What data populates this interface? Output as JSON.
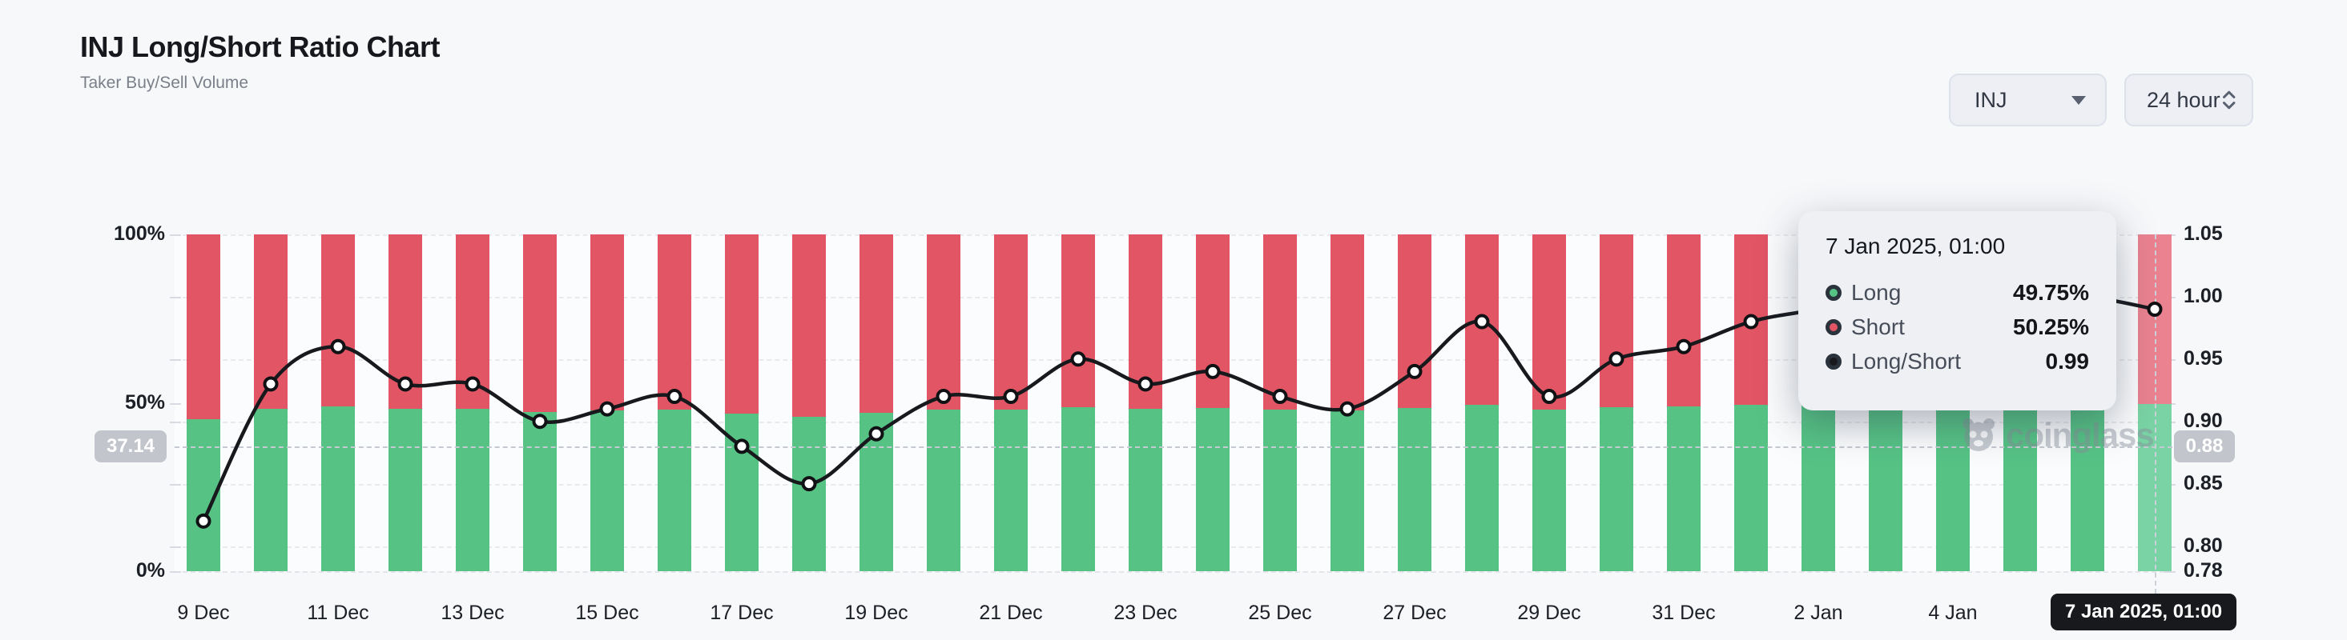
{
  "header": {
    "title": "INJ Long/Short Ratio Chart",
    "subtitle": "Taker Buy/Sell Volume"
  },
  "controls": {
    "symbol": {
      "value": "INJ"
    },
    "interval": {
      "value": "24 hour"
    }
  },
  "watermark": "coinglass",
  "chart_data": {
    "type": "bar",
    "subtype": "100%-stacked bars with long/short ratio line overlay",
    "categories": [
      "9 Dec",
      "10 Dec",
      "11 Dec",
      "12 Dec",
      "13 Dec",
      "14 Dec",
      "15 Dec",
      "16 Dec",
      "17 Dec",
      "18 Dec",
      "19 Dec",
      "20 Dec",
      "21 Dec",
      "22 Dec",
      "23 Dec",
      "24 Dec",
      "25 Dec",
      "26 Dec",
      "27 Dec",
      "28 Dec",
      "29 Dec",
      "30 Dec",
      "31 Dec",
      "1 Jan",
      "2 Jan",
      "3 Jan",
      "4 Jan",
      "5 Jan",
      "6 Jan",
      "7 Jan"
    ],
    "series": [
      {
        "name": "Long",
        "axis": "left",
        "unit": "%",
        "color": "#56c385",
        "values": [
          45.05,
          48.19,
          48.98,
          48.19,
          48.19,
          47.37,
          47.64,
          47.92,
          46.81,
          45.95,
          47.09,
          47.92,
          47.92,
          48.72,
          48.19,
          48.45,
          47.92,
          47.64,
          48.45,
          49.49,
          47.92,
          48.72,
          48.98,
          49.49,
          49.75,
          50.0,
          50.25,
          50.0,
          50.0,
          49.75
        ]
      },
      {
        "name": "Short",
        "axis": "left",
        "unit": "%",
        "color": "#e25565",
        "values": [
          54.95,
          51.81,
          51.02,
          51.81,
          51.81,
          52.63,
          52.36,
          52.08,
          53.19,
          54.05,
          52.91,
          52.08,
          52.08,
          51.28,
          51.81,
          51.55,
          52.08,
          52.36,
          51.55,
          50.51,
          52.08,
          51.28,
          51.02,
          50.51,
          50.25,
          50.0,
          49.75,
          50.0,
          50.0,
          50.25
        ]
      },
      {
        "name": "Long/Short",
        "axis": "right",
        "unit": "ratio",
        "color": "#17191d",
        "values": [
          0.82,
          0.93,
          0.96,
          0.93,
          0.93,
          0.9,
          0.91,
          0.92,
          0.88,
          0.85,
          0.89,
          0.92,
          0.92,
          0.95,
          0.93,
          0.94,
          0.92,
          0.91,
          0.94,
          0.98,
          0.92,
          0.95,
          0.96,
          0.98,
          0.99,
          1.0,
          1.01,
          1.0,
          1.0,
          0.99
        ]
      }
    ],
    "x_tick_labels": [
      "9 Dec",
      "11 Dec",
      "13 Dec",
      "15 Dec",
      "17 Dec",
      "19 Dec",
      "21 Dec",
      "23 Dec",
      "25 Dec",
      "27 Dec",
      "29 Dec",
      "31 Dec",
      "2 Jan",
      "4 Jan",
      "6 Jan"
    ],
    "left_axis": {
      "range": [
        0,
        100
      ],
      "labels": [
        {
          "text": "100%",
          "value": 100
        },
        {
          "text": "50%",
          "value": 50
        },
        {
          "text": "0%",
          "value": 0
        }
      ]
    },
    "right_axis": {
      "range": [
        0.78,
        1.05
      ],
      "gridlines": [
        1.05,
        1.0,
        0.95,
        0.9,
        0.85,
        0.8
      ],
      "labels": [
        {
          "text": "1.05",
          "value": 1.05
        },
        {
          "text": "1.00",
          "value": 1.0
        },
        {
          "text": "0.95",
          "value": 0.95
        },
        {
          "text": "0.90",
          "value": 0.9
        },
        {
          "text": "0.85",
          "value": 0.85
        },
        {
          "text": "0.80",
          "value": 0.8
        },
        {
          "text": "0.78",
          "value": 0.78
        }
      ]
    },
    "grid": "horizontal dashed",
    "legend_position": "none (legend shown inside tooltip)"
  },
  "crosshair": {
    "bar_index": 29,
    "ratio_value": 0.88,
    "left_badge": "37.14",
    "right_badge": "0.88",
    "date_badge": "7 Jan 2025, 01:00"
  },
  "tooltip": {
    "title": "7 Jan 2025, 01:00",
    "rows": [
      {
        "label": "Long",
        "value": "49.75%",
        "color": "#56c385"
      },
      {
        "label": "Short",
        "value": "50.25%",
        "color": "#e25565"
      },
      {
        "label": "Long/Short",
        "value": "0.99",
        "color": "#17191d"
      }
    ]
  }
}
